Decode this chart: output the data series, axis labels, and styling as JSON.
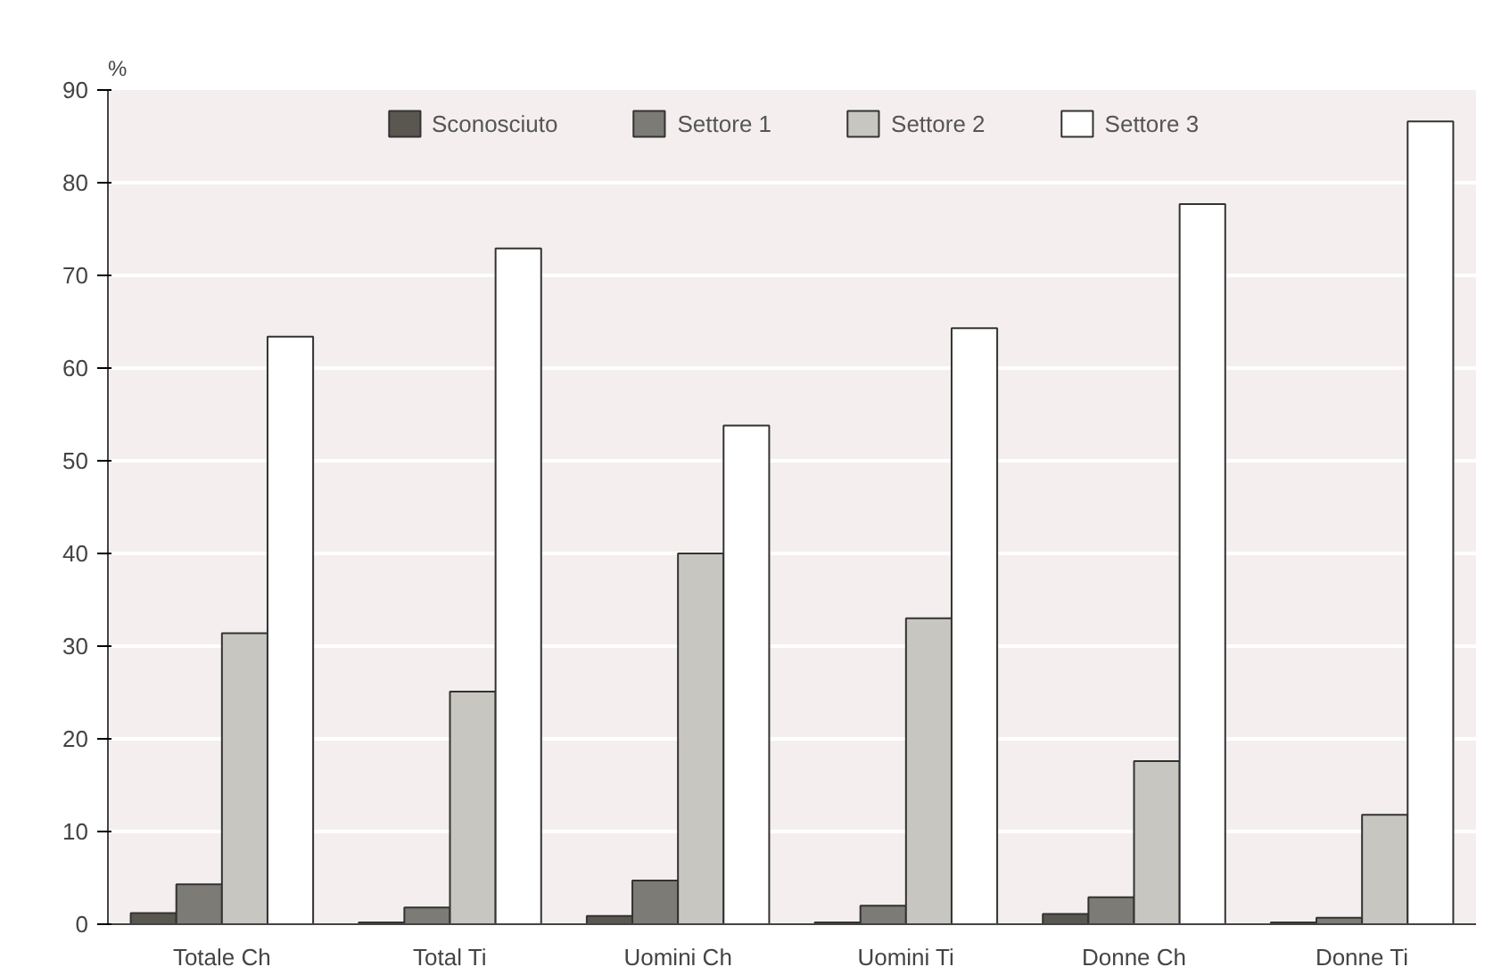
{
  "chart_data": {
    "type": "bar",
    "ylabel": "%",
    "categories": [
      "Totale Ch",
      "Total Ti",
      "Uomini Ch",
      "Uomini Ti",
      "Donne Ch",
      "Donne Ti"
    ],
    "series": [
      {
        "name": "Sconosciuto",
        "color": "#5a5650",
        "values": [
          1.2,
          0.2,
          0.9,
          0.2,
          1.1,
          0.2
        ]
      },
      {
        "name": "Settore 1",
        "color": "#7c7b76",
        "values": [
          4.3,
          1.8,
          4.7,
          2.0,
          2.9,
          0.7
        ]
      },
      {
        "name": "Settore 2",
        "color": "#c8c6c0",
        "values": [
          31.4,
          25.1,
          40.0,
          33.0,
          17.6,
          11.8
        ]
      },
      {
        "name": "Settore 3",
        "color": "#ffffff",
        "values": [
          63.4,
          72.9,
          53.8,
          64.3,
          77.7,
          86.6
        ]
      }
    ],
    "ylim": [
      0,
      90
    ],
    "yticks": [
      0,
      10,
      20,
      30,
      40,
      50,
      60,
      70,
      80,
      90
    ],
    "grid": "y",
    "legend": "top"
  }
}
